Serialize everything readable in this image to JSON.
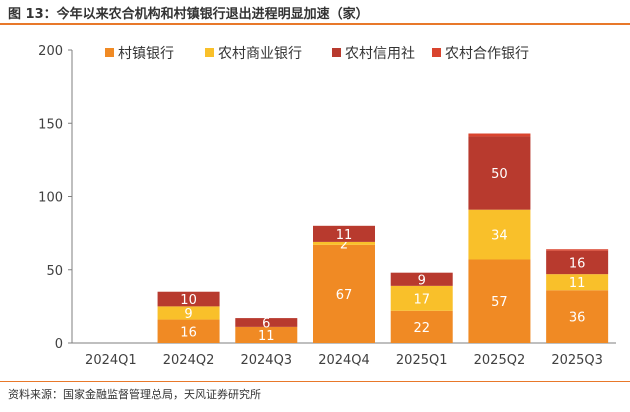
{
  "header": {
    "title": "图 13：今年以来农合机构和村镇银行退出进程明显加速（家）"
  },
  "footer": {
    "source": "资料来源：国家金融监督管理总局，天风证券研究所"
  },
  "colors": {
    "accent_rule": "#E8782A",
    "axis": "#7f7f7f",
    "series": [
      "#F08A24",
      "#F9C02A",
      "#B83A2E",
      "#D9442E"
    ]
  },
  "chart_data": {
    "type": "bar",
    "stacked": true,
    "title": "图 13：今年以来农合机构和村镇银行退出进程明显加速（家）",
    "xlabel": "",
    "ylabel": "",
    "ylim": [
      0,
      200
    ],
    "yticks": [
      0,
      50,
      100,
      150,
      200
    ],
    "grid": false,
    "legend": "top",
    "categories": [
      "2024Q1",
      "2024Q2",
      "2024Q3",
      "2024Q4",
      "2025Q1",
      "2025Q2",
      "2025Q3"
    ],
    "series": [
      {
        "name": "村镇银行",
        "values": [
          0,
          16,
          11,
          67,
          22,
          57,
          36
        ],
        "labels": [
          "",
          "16",
          "11",
          "67",
          "22",
          "57",
          "36"
        ]
      },
      {
        "name": "农村商业银行",
        "values": [
          0,
          9,
          0,
          2,
          17,
          34,
          11
        ],
        "labels": [
          "",
          "9",
          "",
          "2",
          "17",
          "34",
          "11"
        ]
      },
      {
        "name": "农村信用社",
        "values": [
          0,
          10,
          6,
          11,
          9,
          50,
          16
        ],
        "labels": [
          "",
          "10",
          "6",
          "11",
          "9",
          "50",
          "16"
        ]
      },
      {
        "name": "农村合作银行",
        "values": [
          0,
          0,
          0,
          0,
          0,
          2,
          1
        ],
        "labels": [
          "",
          "",
          "",
          "",
          "",
          "",
          ""
        ]
      }
    ]
  }
}
